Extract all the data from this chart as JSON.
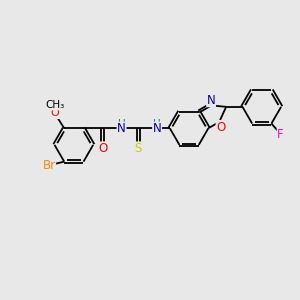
{
  "bg_color": "#e8e8e8",
  "atom_colors": {
    "O": "#ff0000",
    "N": "#0000cc",
    "S": "#cccc00",
    "Br": "#ff8800",
    "F": "#ff00ff",
    "NH": "#008888",
    "C": "#000000"
  },
  "lw": 1.3,
  "font_size": 8.5,
  "fig_width": 3.0,
  "fig_height": 3.0,
  "dpi": 100,
  "xlim": [
    -3.6,
    2.2
  ],
  "ylim": [
    -1.3,
    1.1
  ]
}
